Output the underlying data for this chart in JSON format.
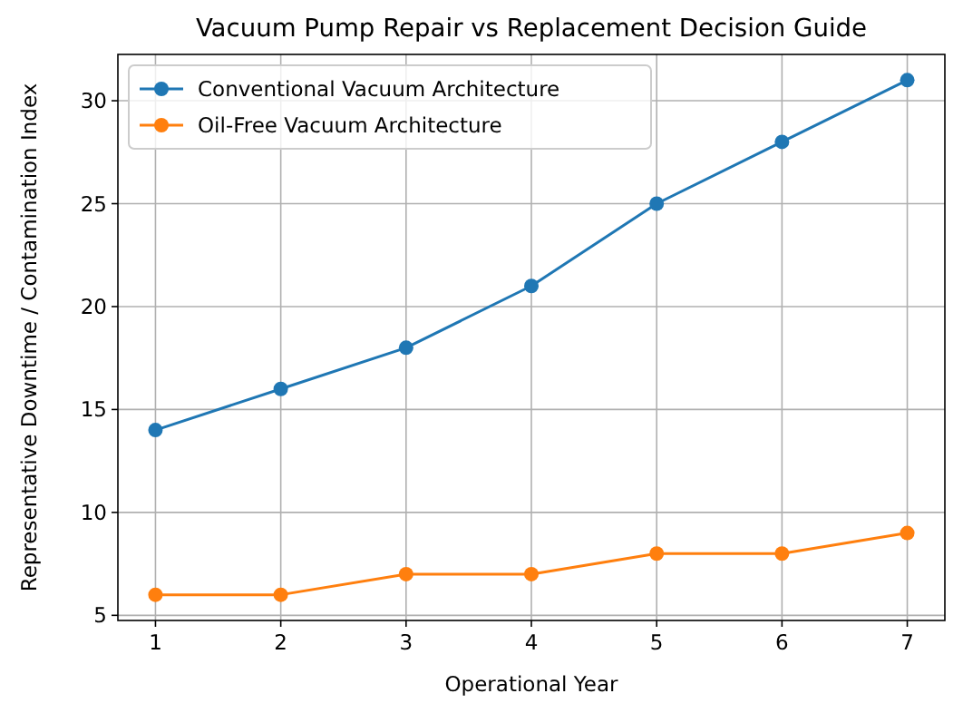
{
  "chart_data": {
    "type": "line",
    "title": "Vacuum Pump Repair vs Replacement Decision Guide",
    "xlabel": "Operational Year",
    "ylabel": "Representative Downtime / Contamination Index",
    "x": [
      1,
      2,
      3,
      4,
      5,
      6,
      7
    ],
    "series": [
      {
        "name": "Conventional Vacuum Architecture",
        "color": "#1f77b4",
        "values": [
          14,
          16,
          18,
          21,
          25,
          28,
          31
        ]
      },
      {
        "name": "Oil-Free Vacuum Architecture",
        "color": "#ff7f0e",
        "values": [
          6,
          6,
          7,
          7,
          8,
          8,
          9
        ]
      }
    ],
    "xlim": [
      0.7,
      7.3
    ],
    "xticks": [
      1,
      2,
      3,
      4,
      5,
      6,
      7
    ],
    "ylim": [
      4.75,
      32.25
    ],
    "yticks": [
      5,
      10,
      15,
      20,
      25,
      30
    ],
    "grid": true,
    "legend": "top left",
    "marker": "circle",
    "line_style": "solid"
  }
}
